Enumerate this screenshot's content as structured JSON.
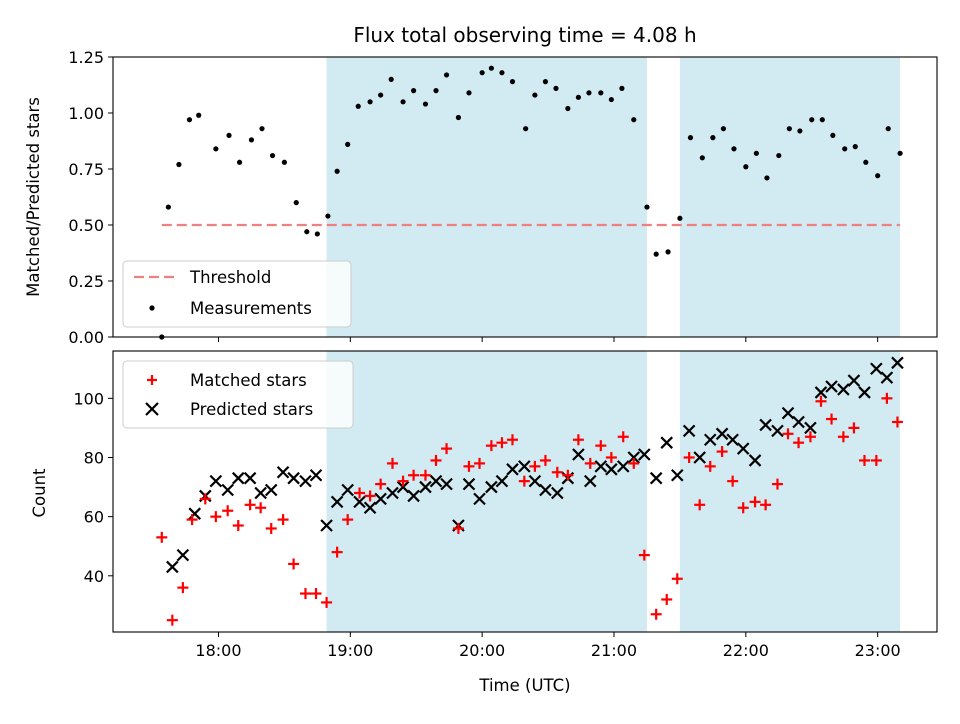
{
  "chart_data": [
    {
      "type": "scatter",
      "title": "Flux total observing time = 4.08 h",
      "xlabel": "",
      "ylabel": "Matched/Predicted stars",
      "ylim": [
        0,
        1.25
      ],
      "yticks": [
        0.0,
        0.25,
        0.5,
        0.75,
        1.0,
        1.25
      ],
      "ytick_labels": [
        "0.00",
        "0.25",
        "0.50",
        "0.75",
        "1.00",
        "1.25"
      ],
      "xtick_labels": [
        "18:00",
        "19:00",
        "20:00",
        "21:00",
        "22:00",
        "23:00"
      ],
      "xticks_hours": [
        18,
        19,
        20,
        21,
        22,
        23
      ],
      "xlim_hours": [
        17.2,
        23.45
      ],
      "observing_windows_hours": [
        [
          18.82,
          21.25
        ],
        [
          21.5,
          23.17
        ]
      ],
      "legend": {
        "position": "lower left",
        "entries": [
          "Threshold",
          "Measurements"
        ]
      },
      "threshold": {
        "name": "Threshold",
        "value": 0.5,
        "x_range_hours": [
          17.57,
          23.17
        ],
        "color": "#f08080"
      },
      "series": [
        {
          "name": "Measurements",
          "color": "#000000",
          "points": [
            [
              17.57,
              0.0
            ],
            [
              17.62,
              0.58
            ],
            [
              17.7,
              0.77
            ],
            [
              17.78,
              0.97
            ],
            [
              17.85,
              0.99
            ],
            [
              17.98,
              0.84
            ],
            [
              18.08,
              0.9
            ],
            [
              18.16,
              0.78
            ],
            [
              18.25,
              0.88
            ],
            [
              18.33,
              0.93
            ],
            [
              18.41,
              0.81
            ],
            [
              18.5,
              0.78
            ],
            [
              18.59,
              0.6
            ],
            [
              18.67,
              0.47
            ],
            [
              18.75,
              0.46
            ],
            [
              18.83,
              0.54
            ],
            [
              18.9,
              0.74
            ],
            [
              18.98,
              0.86
            ],
            [
              19.06,
              1.03
            ],
            [
              19.15,
              1.05
            ],
            [
              19.23,
              1.08
            ],
            [
              19.31,
              1.15
            ],
            [
              19.4,
              1.05
            ],
            [
              19.48,
              1.1
            ],
            [
              19.57,
              1.04
            ],
            [
              19.65,
              1.1
            ],
            [
              19.73,
              1.17
            ],
            [
              19.82,
              0.98
            ],
            [
              19.9,
              1.09
            ],
            [
              20.0,
              1.18
            ],
            [
              20.07,
              1.2
            ],
            [
              20.15,
              1.18
            ],
            [
              20.23,
              1.14
            ],
            [
              20.33,
              0.93
            ],
            [
              20.4,
              1.08
            ],
            [
              20.48,
              1.14
            ],
            [
              20.56,
              1.11
            ],
            [
              20.65,
              1.02
            ],
            [
              20.73,
              1.07
            ],
            [
              20.81,
              1.09
            ],
            [
              20.9,
              1.09
            ],
            [
              20.98,
              1.06
            ],
            [
              21.06,
              1.11
            ],
            [
              21.15,
              0.97
            ],
            [
              21.25,
              0.58
            ],
            [
              21.32,
              0.37
            ],
            [
              21.41,
              0.38
            ],
            [
              21.5,
              0.53
            ],
            [
              21.58,
              0.89
            ],
            [
              21.67,
              0.8
            ],
            [
              21.75,
              0.89
            ],
            [
              21.83,
              0.93
            ],
            [
              21.91,
              0.84
            ],
            [
              22.0,
              0.76
            ],
            [
              22.08,
              0.82
            ],
            [
              22.16,
              0.71
            ],
            [
              22.25,
              0.81
            ],
            [
              22.33,
              0.93
            ],
            [
              22.41,
              0.92
            ],
            [
              22.5,
              0.97
            ],
            [
              22.58,
              0.97
            ],
            [
              22.66,
              0.9
            ],
            [
              22.75,
              0.84
            ],
            [
              22.83,
              0.85
            ],
            [
              22.91,
              0.78
            ],
            [
              23.0,
              0.72
            ],
            [
              23.08,
              0.93
            ],
            [
              23.17,
              0.82
            ]
          ]
        }
      ]
    },
    {
      "type": "scatter",
      "title": "",
      "xlabel": "Time (UTC)",
      "ylabel": "Count",
      "ylim": [
        21,
        116
      ],
      "yticks": [
        40,
        60,
        80,
        100
      ],
      "ytick_labels": [
        "40",
        "60",
        "80",
        "100"
      ],
      "xtick_labels": [
        "18:00",
        "19:00",
        "20:00",
        "21:00",
        "22:00",
        "23:00"
      ],
      "xticks_hours": [
        18,
        19,
        20,
        21,
        22,
        23
      ],
      "xlim_hours": [
        17.2,
        23.45
      ],
      "observing_windows_hours": [
        [
          18.82,
          21.25
        ],
        [
          21.5,
          23.17
        ]
      ],
      "legend": {
        "position": "upper left",
        "entries": [
          "Matched stars",
          "Predicted stars"
        ]
      },
      "series": [
        {
          "name": "Matched stars",
          "marker": "+",
          "color": "#ff0000",
          "points": [
            [
              17.57,
              53
            ],
            [
              17.65,
              25
            ],
            [
              17.73,
              36
            ],
            [
              17.8,
              59
            ],
            [
              17.9,
              66
            ],
            [
              17.98,
              60
            ],
            [
              18.07,
              62
            ],
            [
              18.15,
              57
            ],
            [
              18.24,
              64
            ],
            [
              18.32,
              63
            ],
            [
              18.4,
              56
            ],
            [
              18.49,
              59
            ],
            [
              18.57,
              44
            ],
            [
              18.66,
              34
            ],
            [
              18.74,
              34
            ],
            [
              18.82,
              31
            ],
            [
              18.9,
              48
            ],
            [
              18.98,
              59
            ],
            [
              19.07,
              68
            ],
            [
              19.15,
              67
            ],
            [
              19.23,
              71
            ],
            [
              19.32,
              78
            ],
            [
              19.4,
              72
            ],
            [
              19.48,
              74
            ],
            [
              19.57,
              74
            ],
            [
              19.65,
              79
            ],
            [
              19.73,
              83
            ],
            [
              19.82,
              56
            ],
            [
              19.9,
              77
            ],
            [
              19.98,
              78
            ],
            [
              20.07,
              84
            ],
            [
              20.15,
              85
            ],
            [
              20.23,
              86
            ],
            [
              20.32,
              72
            ],
            [
              20.4,
              77
            ],
            [
              20.48,
              79
            ],
            [
              20.57,
              75
            ],
            [
              20.65,
              74
            ],
            [
              20.73,
              86
            ],
            [
              20.82,
              78
            ],
            [
              20.9,
              84
            ],
            [
              20.98,
              80
            ],
            [
              21.07,
              87
            ],
            [
              21.15,
              78
            ],
            [
              21.23,
              47
            ],
            [
              21.32,
              27
            ],
            [
              21.4,
              32
            ],
            [
              21.48,
              39
            ],
            [
              21.57,
              80
            ],
            [
              21.65,
              64
            ],
            [
              21.73,
              77
            ],
            [
              21.82,
              82
            ],
            [
              21.9,
              72
            ],
            [
              21.98,
              63
            ],
            [
              22.07,
              65
            ],
            [
              22.15,
              64
            ],
            [
              22.24,
              71
            ],
            [
              22.32,
              88
            ],
            [
              22.4,
              85
            ],
            [
              22.49,
              87
            ],
            [
              22.57,
              99
            ],
            [
              22.65,
              93
            ],
            [
              22.74,
              87
            ],
            [
              22.82,
              90
            ],
            [
              22.9,
              79
            ],
            [
              22.99,
              79
            ],
            [
              23.07,
              100
            ],
            [
              23.15,
              92
            ]
          ]
        },
        {
          "name": "Predicted stars",
          "marker": "x",
          "color": "#000000",
          "points": [
            [
              17.65,
              43
            ],
            [
              17.73,
              47
            ],
            [
              17.82,
              61
            ],
            [
              17.9,
              67
            ],
            [
              17.98,
              72
            ],
            [
              18.07,
              69
            ],
            [
              18.15,
              73
            ],
            [
              18.24,
              73
            ],
            [
              18.32,
              68
            ],
            [
              18.4,
              69
            ],
            [
              18.49,
              75
            ],
            [
              18.57,
              73
            ],
            [
              18.66,
              72
            ],
            [
              18.74,
              74
            ],
            [
              18.82,
              57
            ],
            [
              18.9,
              65
            ],
            [
              18.98,
              69
            ],
            [
              19.07,
              65
            ],
            [
              19.15,
              63
            ],
            [
              19.23,
              66
            ],
            [
              19.32,
              68
            ],
            [
              19.4,
              70
            ],
            [
              19.48,
              67
            ],
            [
              19.57,
              70
            ],
            [
              19.65,
              72
            ],
            [
              19.73,
              71
            ],
            [
              19.82,
              57
            ],
            [
              19.9,
              71
            ],
            [
              19.98,
              66
            ],
            [
              20.07,
              70
            ],
            [
              20.15,
              72
            ],
            [
              20.23,
              76
            ],
            [
              20.32,
              77
            ],
            [
              20.4,
              72
            ],
            [
              20.48,
              69
            ],
            [
              20.57,
              68
            ],
            [
              20.65,
              73
            ],
            [
              20.73,
              81
            ],
            [
              20.82,
              72
            ],
            [
              20.9,
              77
            ],
            [
              20.98,
              76
            ],
            [
              21.07,
              77
            ],
            [
              21.15,
              80
            ],
            [
              21.23,
              81
            ],
            [
              21.32,
              73
            ],
            [
              21.4,
              85
            ],
            [
              21.48,
              74
            ],
            [
              21.57,
              89
            ],
            [
              21.65,
              80
            ],
            [
              21.73,
              86
            ],
            [
              21.82,
              88
            ],
            [
              21.9,
              86
            ],
            [
              21.98,
              83
            ],
            [
              22.07,
              79
            ],
            [
              22.15,
              91
            ],
            [
              22.24,
              89
            ],
            [
              22.32,
              95
            ],
            [
              22.4,
              92
            ],
            [
              22.49,
              90
            ],
            [
              22.57,
              102
            ],
            [
              22.65,
              104
            ],
            [
              22.74,
              103
            ],
            [
              22.82,
              106
            ],
            [
              22.9,
              102
            ],
            [
              22.99,
              110
            ],
            [
              23.07,
              107
            ],
            [
              23.15,
              112
            ]
          ]
        }
      ]
    }
  ],
  "colors": {
    "observing_window": "#add8e6",
    "threshold": "#f08080",
    "matched": "#ff0000",
    "predicted": "#000000",
    "measurement": "#000000"
  }
}
